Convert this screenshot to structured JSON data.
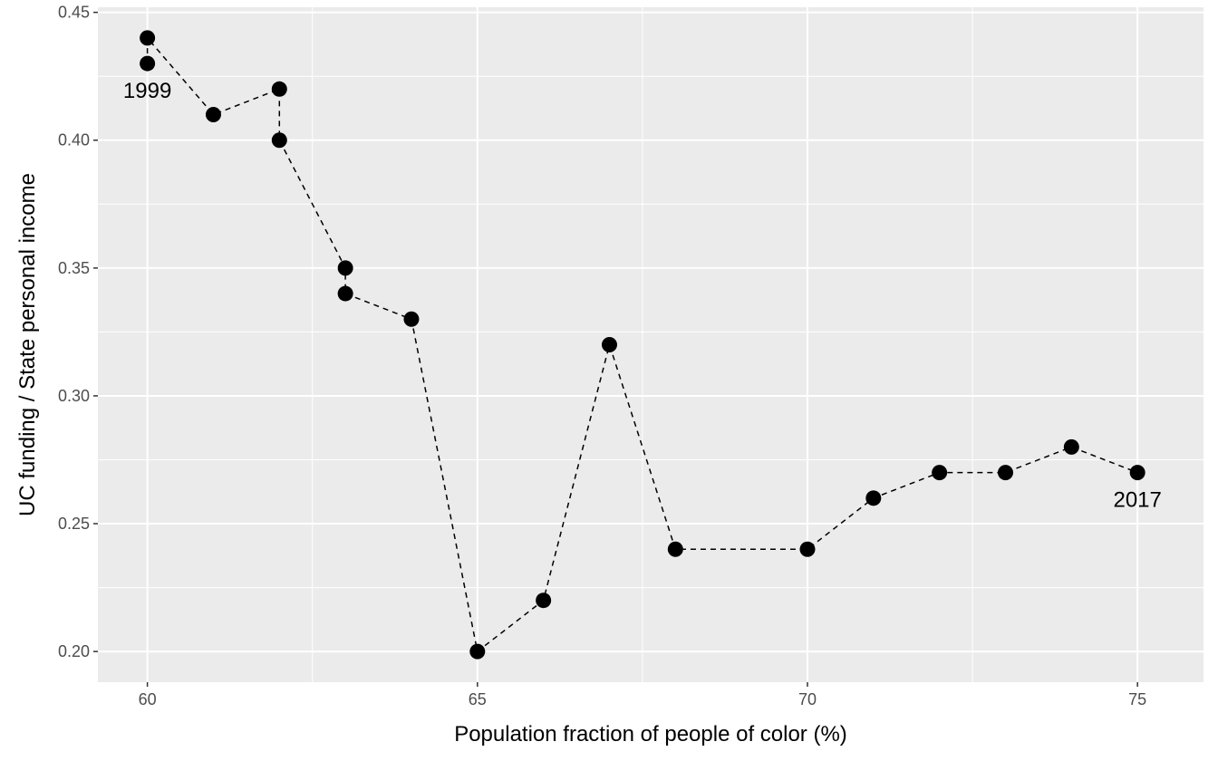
{
  "chart_data": {
    "type": "scatter",
    "title": "",
    "xlabel": "Population fraction of people of color (%)",
    "ylabel": "UC funding / State  personal income",
    "xlim": [
      59.25,
      76.0
    ],
    "ylim": [
      0.188,
      0.452
    ],
    "x_ticks": [
      60,
      65,
      70,
      75
    ],
    "x_tick_labels": [
      "60",
      "65",
      "70",
      "75"
    ],
    "y_ticks": [
      0.2,
      0.25,
      0.3,
      0.35,
      0.4,
      0.45
    ],
    "y_tick_labels": [
      "0.20",
      "0.25",
      "0.30",
      "0.35",
      "0.40",
      "0.45"
    ],
    "grid": true,
    "line_style": "dashed",
    "points": [
      {
        "x": 60,
        "y": 0.43
      },
      {
        "x": 60,
        "y": 0.44
      },
      {
        "x": 61,
        "y": 0.41
      },
      {
        "x": 62,
        "y": 0.42
      },
      {
        "x": 62,
        "y": 0.4
      },
      {
        "x": 63,
        "y": 0.35
      },
      {
        "x": 63,
        "y": 0.34
      },
      {
        "x": 64,
        "y": 0.33
      },
      {
        "x": 65,
        "y": 0.2
      },
      {
        "x": 66,
        "y": 0.22
      },
      {
        "x": 67,
        "y": 0.32
      },
      {
        "x": 68,
        "y": 0.24
      },
      {
        "x": 70,
        "y": 0.24
      },
      {
        "x": 71,
        "y": 0.26
      },
      {
        "x": 72,
        "y": 0.27
      },
      {
        "x": 73,
        "y": 0.27
      },
      {
        "x": 74,
        "y": 0.28
      },
      {
        "x": 75,
        "y": 0.27
      }
    ],
    "annotations": [
      {
        "text": "1999",
        "x": 60,
        "y": 0.43
      },
      {
        "text": "2017",
        "x": 75,
        "y": 0.27
      }
    ],
    "colors": {
      "panel": "#ebebeb",
      "grid": "#ffffff",
      "point": "#000000",
      "line": "#000000"
    }
  }
}
